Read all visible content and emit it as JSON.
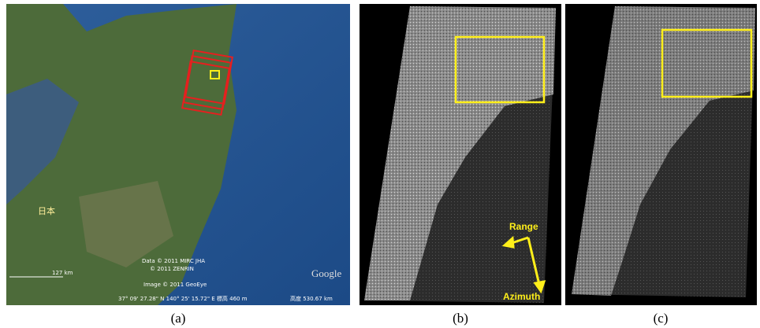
{
  "panel_a": {
    "caption": "(a)",
    "place_label": "日本",
    "attribution_1": "Data © 2011 MIRC JHA",
    "attribution_2": "© 2011 ZENRIN",
    "attribution_3": "Image © 2011 GeoEye",
    "scale": "127 km",
    "coordinates": "37° 09' 27.28\" N 140° 25' 15.72\" E 標高 460 m",
    "altitude": "高度 530.67 km",
    "logo": "Google"
  },
  "panel_b": {
    "caption": "(b)",
    "range_label": "Range",
    "azimuth_label": "Azimuth"
  },
  "panel_c": {
    "caption": "(c)"
  }
}
